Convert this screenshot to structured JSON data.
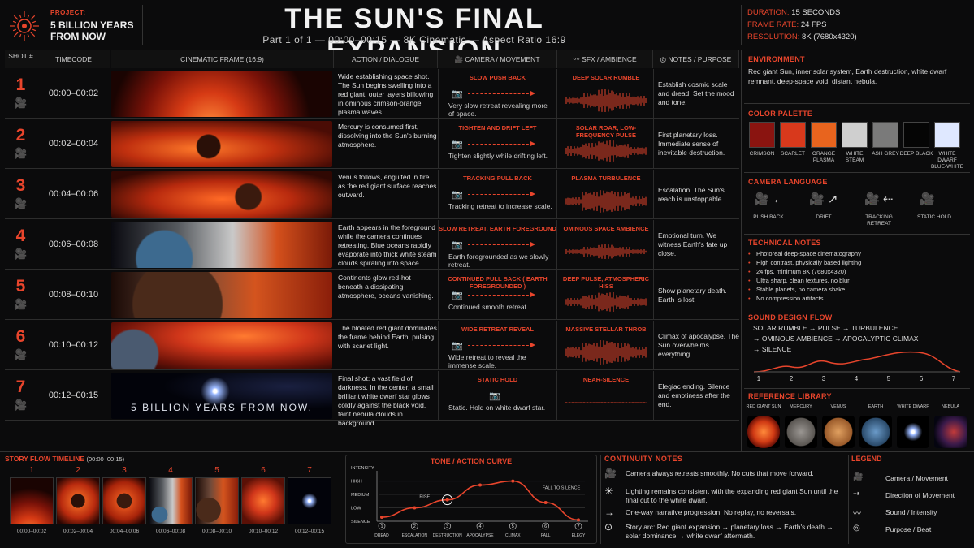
{
  "header": {
    "project_label": "PROJECT:",
    "project_value": "5 BILLION YEARS FROM NOW",
    "title": "THE SUN'S FINAL EXPANSION",
    "subtitle": "Part 1 of 1   —   00:00–00:15   —   8K Cinematic   —   Aspect Ratio 16:9",
    "duration_label": "DURATION:",
    "duration_value": "15 SECONDS",
    "fps_label": "FRAME RATE:",
    "fps_value": "24 FPS",
    "res_label": "RESOLUTION:",
    "res_value": "8K (7680x4320)"
  },
  "columns": {
    "shot": "SHOT #",
    "timecode": "TIMECODE",
    "frame": "CINEMATIC FRAME (16:9)",
    "action": "ACTION / DIALOGUE",
    "camera": "CAMERA / MOVEMENT",
    "sfx": "SFX / AMBIENCE",
    "notes": "NOTES / PURPOSE"
  },
  "shots": [
    {
      "num": "1",
      "tc": "00:00–00:02",
      "action": "Wide establishing space shot. The Sun begins swelling into a red giant, outer layers billowing in ominous crimson-orange plasma waves.",
      "cam_label": "SLOW PUSH BACK",
      "cam_desc": "Very slow retreat revealing more of space.",
      "sfx": "DEEP SOLAR RUMBLE",
      "notes": "Establish cosmic scale and dread. Set the mood and tone."
    },
    {
      "num": "2",
      "tc": "00:02–00:04",
      "action": "Mercury is consumed first, dissolving into the Sun's burning atmosphere.",
      "cam_label": "TIGHTEN AND DRIFT LEFT",
      "cam_desc": "Tighten slightly while drifting left.",
      "sfx": "SOLAR ROAR, LOW-FREQUENCY PULSE",
      "notes": "First planetary loss. Immediate sense of inevitable destruction."
    },
    {
      "num": "3",
      "tc": "00:04–00:06",
      "action": "Venus follows, engulfed in fire as the red giant surface reaches outward.",
      "cam_label": "TRACKING PULL BACK",
      "cam_desc": "Tracking retreat to increase scale.",
      "sfx": "PLASMA TURBULENCE",
      "notes": "Escalation. The Sun's reach is unstoppable."
    },
    {
      "num": "4",
      "tc": "00:06–00:08",
      "action": "Earth appears in the foreground while the camera continues retreating. Blue oceans rapidly evaporate into thick white steam clouds spiraling into space.",
      "cam_label": "SLOW RETREAT, EARTH FOREGROUND",
      "cam_desc": "Earth foregrounded as we slowly retreat.",
      "sfx": "OMINOUS SPACE AMBIENCE",
      "notes": "Emotional turn. We witness Earth's fate up close."
    },
    {
      "num": "5",
      "tc": "00:08–00:10",
      "action": "Continents glow red-hot beneath a dissipating atmosphere, oceans vanishing.",
      "cam_label": "CONTINUED PULL BACK ( EARTH FOREGROUNDED )",
      "cam_desc": "Continued smooth retreat.",
      "sfx": "DEEP PULSE, ATMOSPHERIC HISS",
      "notes": "Show planetary death. Earth is lost."
    },
    {
      "num": "6",
      "tc": "00:10–00:12",
      "action": "The bloated red giant dominates the frame behind Earth, pulsing with scarlet light.",
      "cam_label": "WIDE RETREAT REVEAL",
      "cam_desc": "Wide retreat to reveal the immense scale.",
      "sfx": "MASSIVE STELLAR THROB",
      "notes": "Climax of apocalypse. The Sun overwhelms everything."
    },
    {
      "num": "7",
      "tc": "00:12–00:15",
      "action": "Final shot: a vast field of darkness. In the center, a small brilliant white dwarf star glows coldly against the black void, faint nebula clouds in background.",
      "cam_label": "STATIC HOLD",
      "cam_desc": "Static. Hold on white dwarf star.",
      "sfx": "NEAR-SILENCE",
      "notes": "Elegiac ending. Silence and emptiness after the end.",
      "frame_text": "5 BILLION YEARS FROM NOW."
    }
  ],
  "environment": {
    "heading": "ENVIRONMENT",
    "text": "Red giant Sun, inner solar system, Earth destruction, white dwarf remnant, deep-space void, distant nebula."
  },
  "palette": {
    "heading": "COLOR PALETTE",
    "colors": [
      {
        "name": "CRIMSON",
        "hex": "#8a1410"
      },
      {
        "name": "SCARLET",
        "hex": "#d8391c"
      },
      {
        "name": "ORANGE PLASMA",
        "hex": "#e8641e"
      },
      {
        "name": "WHITE STEAM",
        "hex": "#cfcfcf"
      },
      {
        "name": "ASH GREY",
        "hex": "#7a7a7a"
      },
      {
        "name": "DEEP BLACK",
        "hex": "#050505"
      },
      {
        "name": "WHITE DWARF BLUE-WHITE",
        "hex": "#dfe8ff"
      }
    ]
  },
  "camera_language": {
    "heading": "CAMERA LANGUAGE",
    "items": [
      "PUSH BACK",
      "DRIFT",
      "TRACKING RETREAT",
      "STATIC HOLD"
    ]
  },
  "technical": {
    "heading": "TECHNICAL NOTES",
    "items": [
      "Photoreal deep-space cinematography",
      "High contrast, physically based lighting",
      "24 fps, minimum 8K (7680x4320)",
      "Ultra sharp, clean textures, no blur",
      "Stable planets, no camera shake",
      "No compression artifacts"
    ]
  },
  "sound_flow": {
    "heading": "SOUND DESIGN FLOW",
    "line1": "SOLAR RUMBLE → PULSE → TURBULENCE",
    "line2": "→ OMINOUS AMBIENCE → APOCALYPTIC CLIMAX",
    "line3": "→ SILENCE",
    "ticks": [
      "1",
      "2",
      "3",
      "4",
      "5",
      "6",
      "7"
    ]
  },
  "reference": {
    "heading": "REFERENCE LIBRARY",
    "items": [
      "RED GIANT SUN",
      "MERCURY",
      "VENUS",
      "EARTH",
      "WHITE DWARF",
      "NEBULA"
    ]
  },
  "story_flow": {
    "heading": "STORY FLOW TIMELINE",
    "range": "(00:00–00:15)",
    "frames": [
      {
        "n": "1",
        "tc": "00:00–00:02"
      },
      {
        "n": "2",
        "tc": "00:02–00:04"
      },
      {
        "n": "3",
        "tc": "00:04–00:06"
      },
      {
        "n": "4",
        "tc": "00:06–00:08"
      },
      {
        "n": "5",
        "tc": "00:08–00:10"
      },
      {
        "n": "6",
        "tc": "00:10–00:12"
      },
      {
        "n": "7",
        "tc": "00:12–00:15"
      }
    ]
  },
  "tone_curve": {
    "heading": "TONE / ACTION CURVE",
    "ylabel": "INTENSITY",
    "levels": [
      "HIGH",
      "MEDIUM",
      "LOW",
      "SILENCE"
    ],
    "stages": [
      "DREAD",
      "ESCALATION",
      "DESTRUCTION",
      "APOCALYPSE",
      "CLIMAX",
      "FALL",
      "ELEGY"
    ],
    "stage_nums": [
      "1",
      "2",
      "3",
      "4",
      "5",
      "6",
      "7"
    ],
    "rise": "RISE",
    "fall": "FALL TO SILENCE"
  },
  "chart_data": {
    "type": "line",
    "title": "TONE / ACTION CURVE",
    "xlabel": "",
    "ylabel": "INTENSITY",
    "categories": [
      "DREAD",
      "ESCALATION",
      "DESTRUCTION",
      "APOCALYPSE",
      "CLIMAX",
      "FALL",
      "ELEGY"
    ],
    "y_levels": [
      "SILENCE",
      "LOW",
      "MEDIUM",
      "HIGH"
    ],
    "values": [
      0.3,
      1.0,
      1.6,
      2.7,
      3.0,
      1.4,
      0.1
    ],
    "ylim": [
      0,
      3.4
    ],
    "grid": true
  },
  "continuity": {
    "heading": "CONTINUITY NOTES",
    "items": [
      "Camera always retreats smoothly. No cuts that move forward.",
      "Lighting remains consistent with the expanding red giant Sun until the final cut to the white dwarf.",
      "One-way narrative progression. No replay, no reversals.",
      "Story arc: Red giant expansion → planetary loss → Earth's death → solar dominance → white dwarf aftermath."
    ]
  },
  "legend": {
    "heading": "LEGEND",
    "items": [
      "Camera / Movement",
      "Direction of Movement",
      "Sound / Intensity",
      "Purpose / Beat"
    ]
  },
  "colors": {
    "accent": "#e8452c",
    "bg": "#0b0b0c"
  }
}
